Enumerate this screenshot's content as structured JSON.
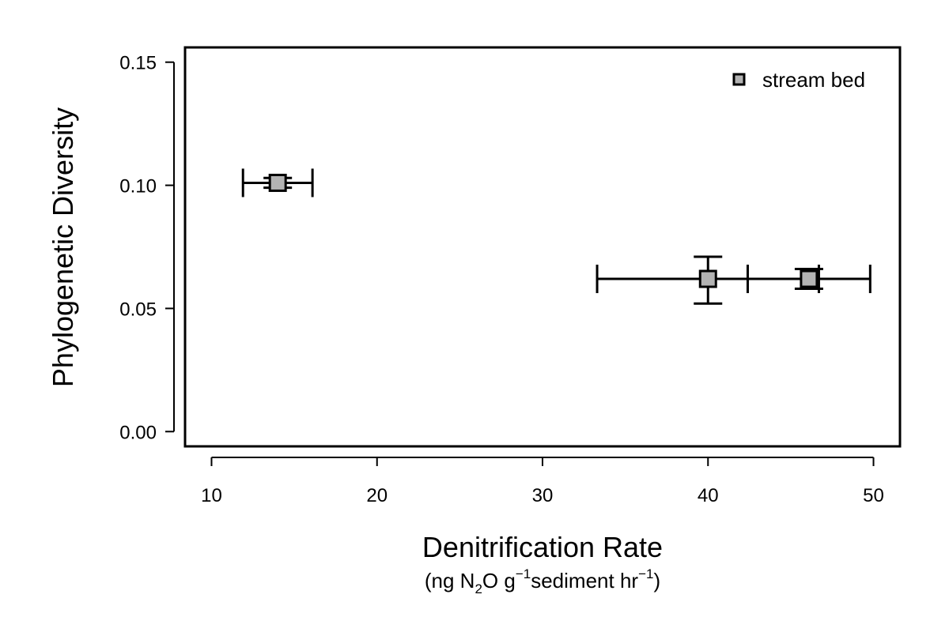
{
  "chart_data": {
    "type": "scatter",
    "xlabel": "Denitrification Rate",
    "xlabel_units": {
      "open": "(ng N",
      "sub": "2",
      "mid": "O g",
      "sup1": "−1",
      "mid2": "sediment hr",
      "sup2": "−1",
      "close": ")"
    },
    "ylabel": "Phylogenetic Diversity",
    "xlim": [
      8.4,
      51.6
    ],
    "ylim": [
      -0.006,
      0.156
    ],
    "x_ticks": [
      10,
      20,
      30,
      40,
      50
    ],
    "x_tick_labels": [
      "10",
      "20",
      "30",
      "40",
      "50"
    ],
    "y_ticks": [
      0.0,
      0.05,
      0.1,
      0.15
    ],
    "y_tick_labels": [
      "0.00",
      "0.05",
      "0.10",
      "0.15"
    ],
    "legend": {
      "position": "top-right",
      "entries": [
        "stream bed"
      ]
    },
    "series": [
      {
        "name": "stream bed",
        "marker": "square",
        "color": "#b3b3b3",
        "points": [
          {
            "x": 14.0,
            "y": 0.101,
            "x_err": [
              11.9,
              16.1
            ],
            "y_err": [
              0.099,
              0.103
            ]
          },
          {
            "x": 40.0,
            "y": 0.062,
            "x_err": [
              33.3,
              46.7
            ],
            "y_err": [
              0.052,
              0.071
            ]
          },
          {
            "x": 46.1,
            "y": 0.062,
            "x_err": [
              42.4,
              49.8
            ],
            "y_err": [
              0.058,
              0.066
            ]
          }
        ]
      }
    ]
  }
}
